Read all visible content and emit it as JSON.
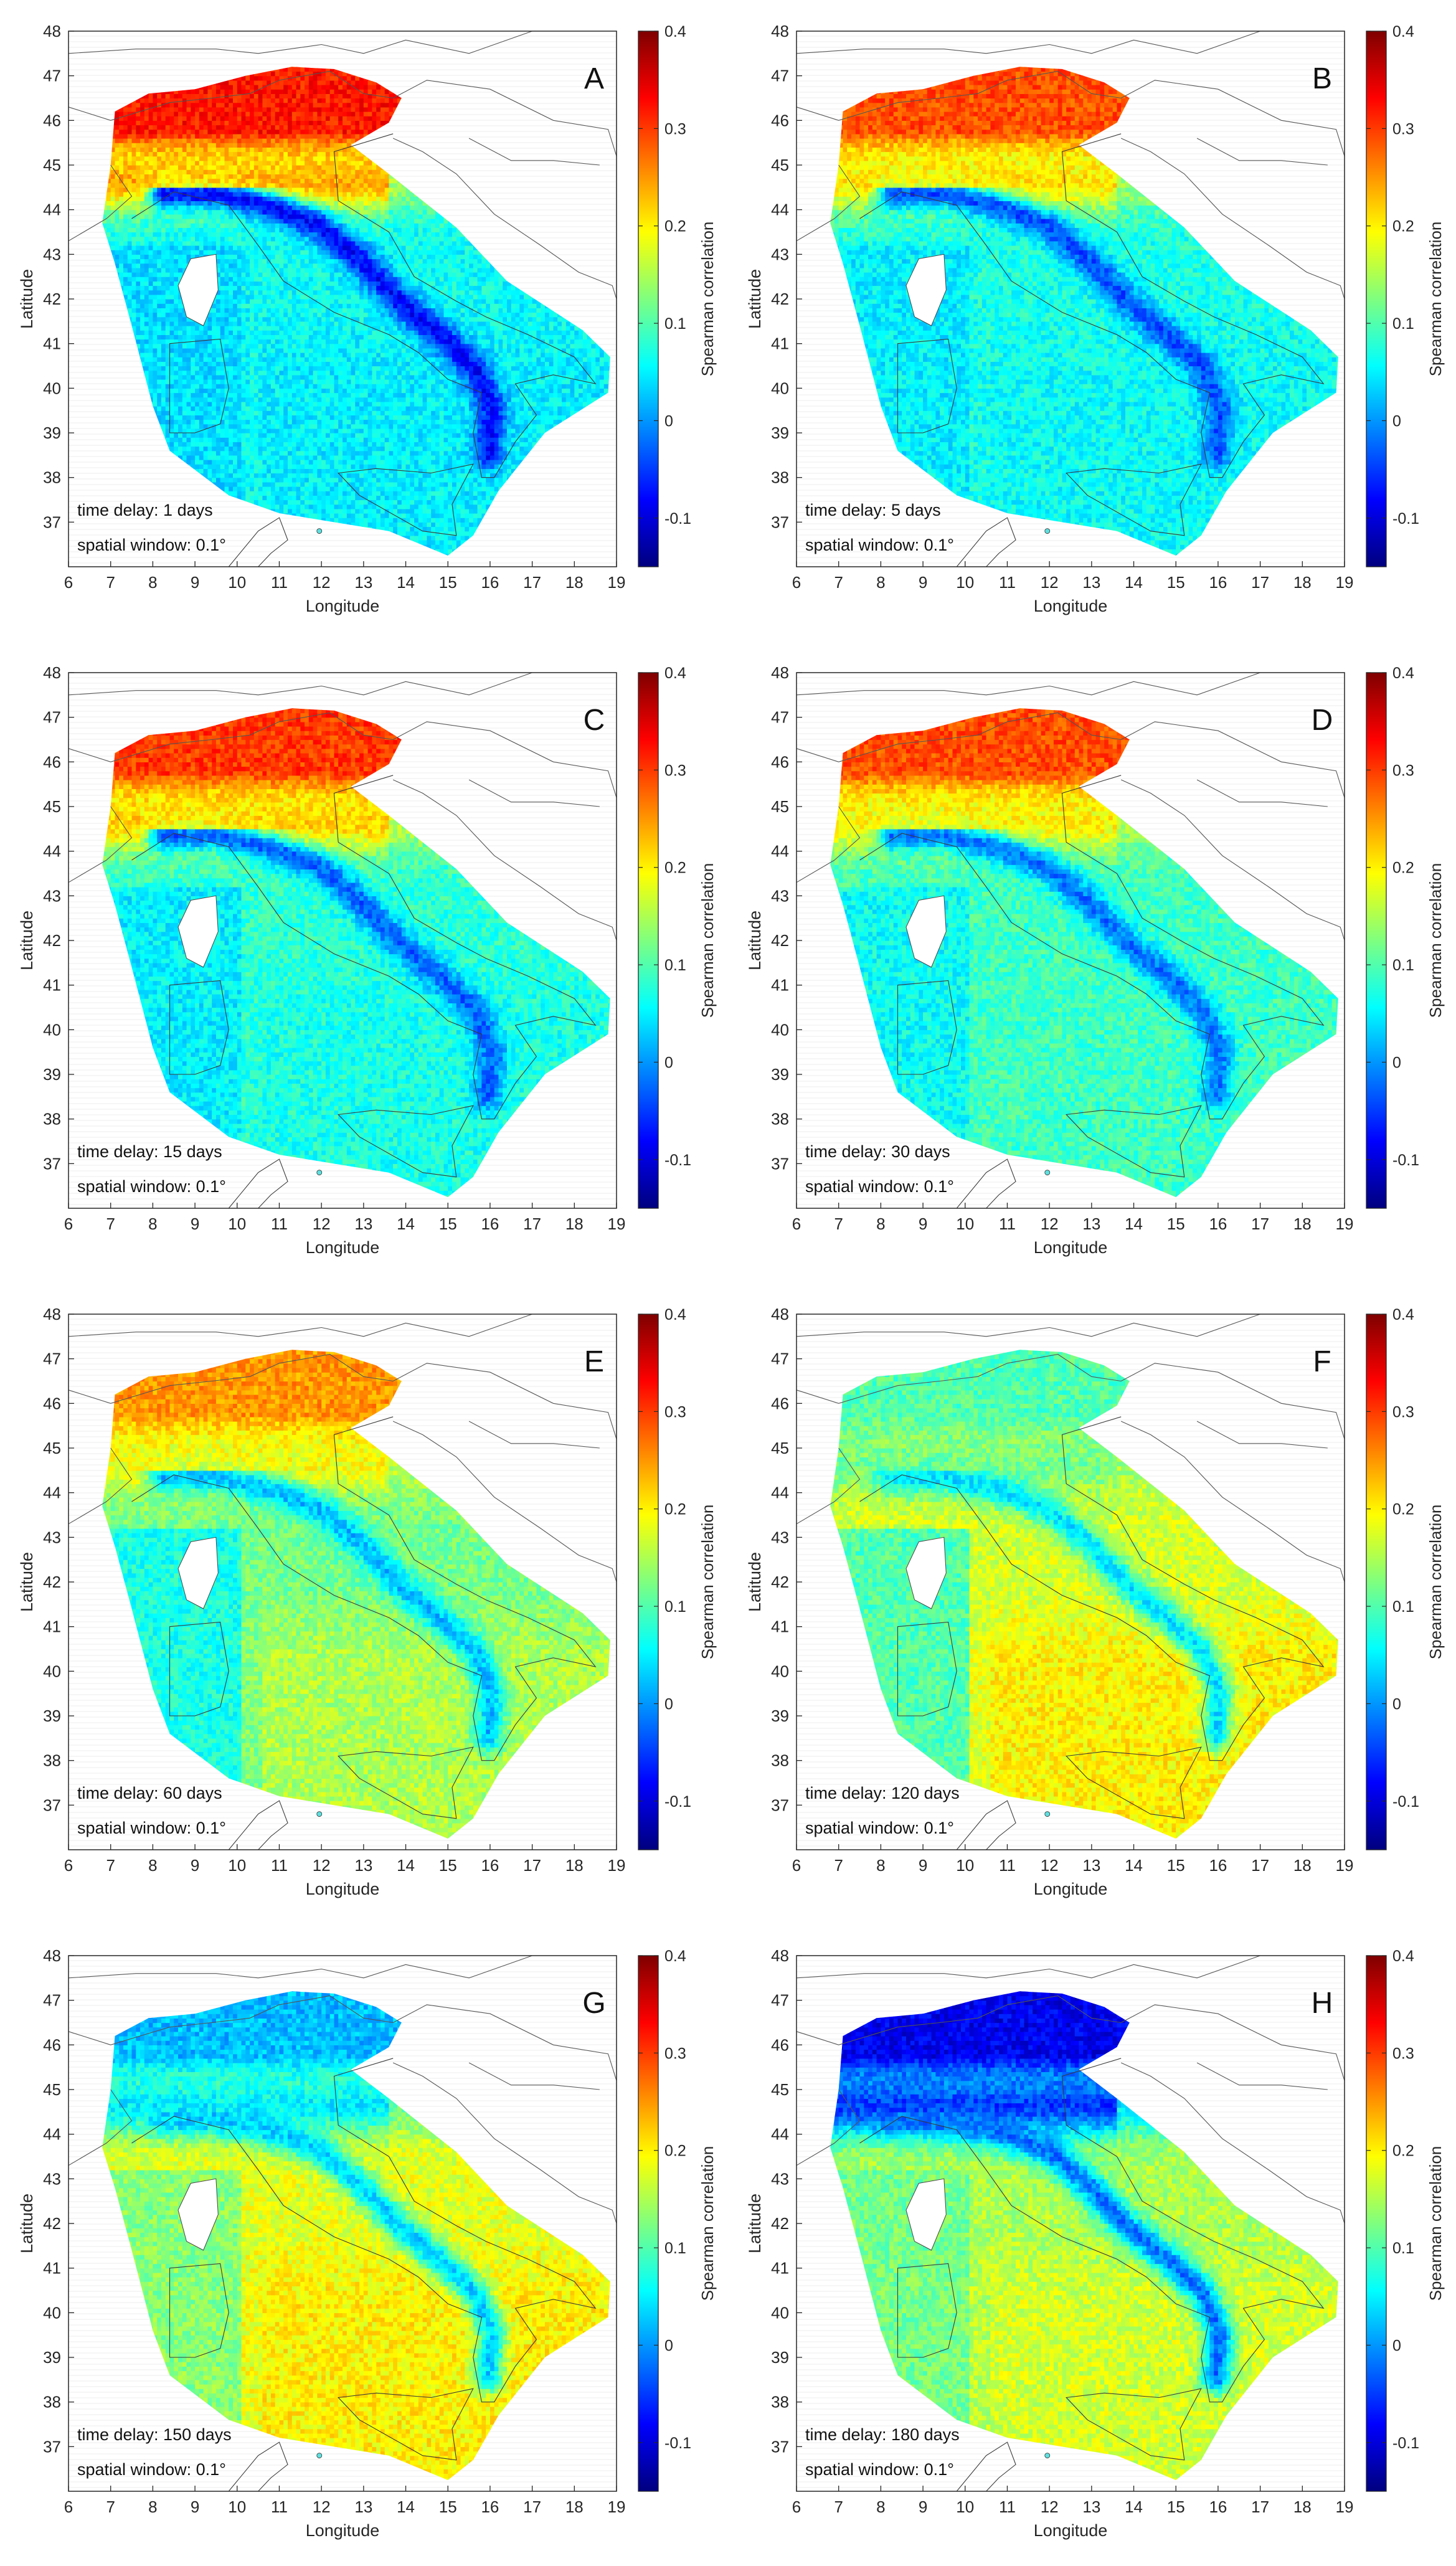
{
  "figure": {
    "axis": {
      "xlabel": "Longitude",
      "ylabel": "Latitude",
      "lon_range": [
        6,
        19
      ],
      "lat_range": [
        36,
        48
      ],
      "x_ticks": [
        "6",
        "7",
        "8",
        "9",
        "10",
        "11",
        "12",
        "13",
        "14",
        "15",
        "16",
        "17",
        "18",
        "19"
      ],
      "y_ticks": [
        "37",
        "38",
        "39",
        "40",
        "41",
        "42",
        "43",
        "44",
        "45",
        "46",
        "47",
        "48"
      ]
    },
    "colorbar": {
      "label": "Spearman correlation",
      "range": [
        -0.15,
        0.4
      ],
      "ticks": [
        "-0.1",
        "0",
        "0.1",
        "0.2",
        "0.3",
        "0.4"
      ],
      "colormap": "jet",
      "colors": [
        "#00007f",
        "#0000ff",
        "#007fff",
        "#00ffff",
        "#7fff7f",
        "#ffff00",
        "#ff7f00",
        "#ff0000",
        "#7f0000"
      ]
    },
    "spatial_window_text": "spatial window: 0.1°",
    "panels": [
      {
        "letter": "A",
        "time_delay": "time delay: 1 days",
        "corr": {
          "north": 0.32,
          "po_valley": 0.24,
          "apennines": -0.08,
          "center": 0.06,
          "south": 0.05,
          "islands": 0.04
        }
      },
      {
        "letter": "B",
        "time_delay": "time delay: 5 days",
        "corr": {
          "north": 0.29,
          "po_valley": 0.21,
          "apennines": -0.04,
          "center": 0.07,
          "south": 0.06,
          "islands": 0.05
        }
      },
      {
        "letter": "C",
        "time_delay": "time delay: 15 days",
        "corr": {
          "north": 0.3,
          "po_valley": 0.22,
          "apennines": -0.03,
          "center": 0.08,
          "south": 0.07,
          "islands": 0.05
        }
      },
      {
        "letter": "D",
        "time_delay": "time delay: 30 days",
        "corr": {
          "north": 0.29,
          "po_valley": 0.2,
          "apennines": -0.02,
          "center": 0.09,
          "south": 0.09,
          "islands": 0.06
        }
      },
      {
        "letter": "E",
        "time_delay": "time delay: 60 days",
        "corr": {
          "north": 0.25,
          "po_valley": 0.19,
          "apennines": 0.02,
          "center": 0.12,
          "south": 0.15,
          "islands": 0.07
        }
      },
      {
        "letter": "F",
        "time_delay": "time delay: 120 days",
        "corr": {
          "north": 0.1,
          "po_valley": 0.12,
          "apennines": 0.04,
          "center": 0.17,
          "south": 0.2,
          "islands": 0.1
        }
      },
      {
        "letter": "G",
        "time_delay": "time delay: 150 days",
        "corr": {
          "north": 0.02,
          "po_valley": 0.05,
          "apennines": 0.03,
          "center": 0.18,
          "south": 0.2,
          "islands": 0.13
        }
      },
      {
        "letter": "H",
        "time_delay": "time delay: 180 days",
        "corr": {
          "north": -0.09,
          "po_valley": -0.05,
          "apennines": -0.02,
          "center": 0.15,
          "south": 0.17,
          "islands": 0.12
        }
      }
    ]
  }
}
